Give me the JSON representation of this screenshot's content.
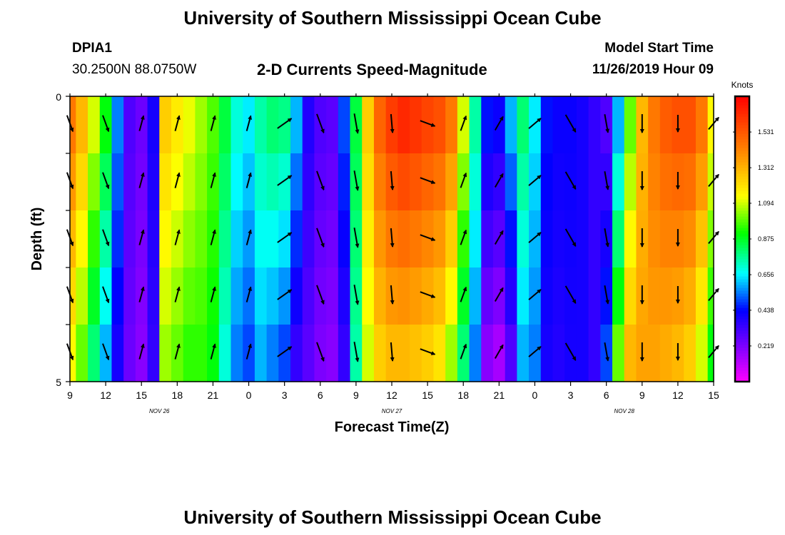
{
  "page": {
    "title": "University of Southern Mississippi Ocean Cube",
    "footer_title": "University of Southern Mississippi Ocean Cube",
    "station_id": "DPIA1",
    "station_coords": "30.2500N 88.0750W",
    "plot_title": "2-D Currents Speed-Magnitude",
    "model_start_label": "Model Start Time",
    "model_start_value": "11/26/2019 Hour 09"
  },
  "chart_data": {
    "type": "heatmap",
    "title": "2-D Currents Speed-Magnitude",
    "xlabel": "Forecast Time(Z)",
    "ylabel": "Depth (ft)",
    "y_ticks": [
      "0",
      "5"
    ],
    "ylim": [
      0,
      5
    ],
    "x_tick_labels": [
      "9",
      "12",
      "15",
      "18",
      "21",
      "0",
      "3",
      "6",
      "9",
      "12",
      "15",
      "18",
      "21",
      "0",
      "3",
      "6",
      "9",
      "12",
      "15"
    ],
    "date_labels": [
      {
        "text": "NOV 26",
        "tick_index": 2.5
      },
      {
        "text": "NOV 27",
        "tick_index": 9
      },
      {
        "text": "NOV 28",
        "tick_index": 15.5
      }
    ],
    "colorbar": {
      "unit": "Knots",
      "range": [
        0,
        1.75
      ],
      "tick_values": [
        0.219,
        0.438,
        0.656,
        0.875,
        1.094,
        1.312,
        1.531
      ],
      "tick_labels": [
        "0.219",
        "0.438",
        "0.656",
        "0.875",
        "1.094",
        "1.312",
        "1.531"
      ]
    },
    "depth_layers": 5,
    "speed_profile": {
      "hours": [
        0,
        1,
        2,
        3,
        4,
        5,
        6,
        7,
        8,
        9,
        10,
        11,
        12,
        13,
        14,
        15,
        16,
        17,
        18,
        19,
        20,
        21,
        22,
        23,
        24,
        25,
        26,
        27,
        28,
        29,
        30,
        31,
        32,
        33,
        34,
        35,
        36,
        37,
        38,
        39,
        40,
        41,
        42,
        43,
        44,
        45,
        46,
        47,
        48,
        49,
        50,
        51,
        52,
        53,
        54
      ],
      "surface": [
        1.45,
        1.3,
        1.1,
        0.9,
        0.55,
        0.3,
        0.25,
        0.4,
        1.25,
        1.18,
        1.12,
        1.05,
        0.98,
        0.85,
        0.7,
        0.65,
        0.75,
        0.8,
        0.78,
        0.6,
        0.38,
        0.3,
        0.28,
        0.5,
        0.85,
        1.25,
        1.5,
        1.6,
        1.65,
        1.62,
        1.58,
        1.55,
        1.45,
        1.1,
        0.75,
        0.45,
        0.42,
        0.6,
        0.8,
        0.65,
        0.45,
        0.42,
        0.42,
        0.4,
        0.35,
        0.3,
        0.6,
        1.0,
        1.3,
        1.45,
        1.52,
        1.55,
        1.55,
        1.45,
        1.15
      ],
      "bottom": [
        1.15,
        1.0,
        0.8,
        0.6,
        0.4,
        0.25,
        0.2,
        0.35,
        1.05,
        1.0,
        0.95,
        0.95,
        0.9,
        0.7,
        0.55,
        0.5,
        0.6,
        0.55,
        0.5,
        0.35,
        0.28,
        0.22,
        0.2,
        0.35,
        0.75,
        1.1,
        1.25,
        1.3,
        1.3,
        1.28,
        1.25,
        1.2,
        1.05,
        0.8,
        0.55,
        0.2,
        0.15,
        0.3,
        0.6,
        0.55,
        0.4,
        0.38,
        0.4,
        0.4,
        0.35,
        0.5,
        1.0,
        1.3,
        1.35,
        1.35,
        1.33,
        1.3,
        1.25,
        1.1,
        0.9
      ]
    },
    "current_vectors": {
      "hours": [
        0,
        3,
        6,
        9,
        12,
        15,
        18,
        21,
        24,
        27,
        30,
        33,
        36,
        39,
        42,
        45,
        48,
        51,
        54
      ],
      "bearing_deg": [
        160,
        160,
        15,
        15,
        15,
        15,
        55,
        160,
        170,
        175,
        110,
        20,
        30,
        50,
        150,
        170,
        180,
        180,
        40
      ],
      "relative_length": [
        0.6,
        0.6,
        0.55,
        0.55,
        0.55,
        0.55,
        0.6,
        0.7,
        0.7,
        0.65,
        0.55,
        0.55,
        0.55,
        0.55,
        0.7,
        0.65,
        0.65,
        0.6,
        0.55
      ]
    }
  },
  "colors": {
    "background": "#ffffff",
    "axis": "#000000",
    "vector": "#000000"
  }
}
